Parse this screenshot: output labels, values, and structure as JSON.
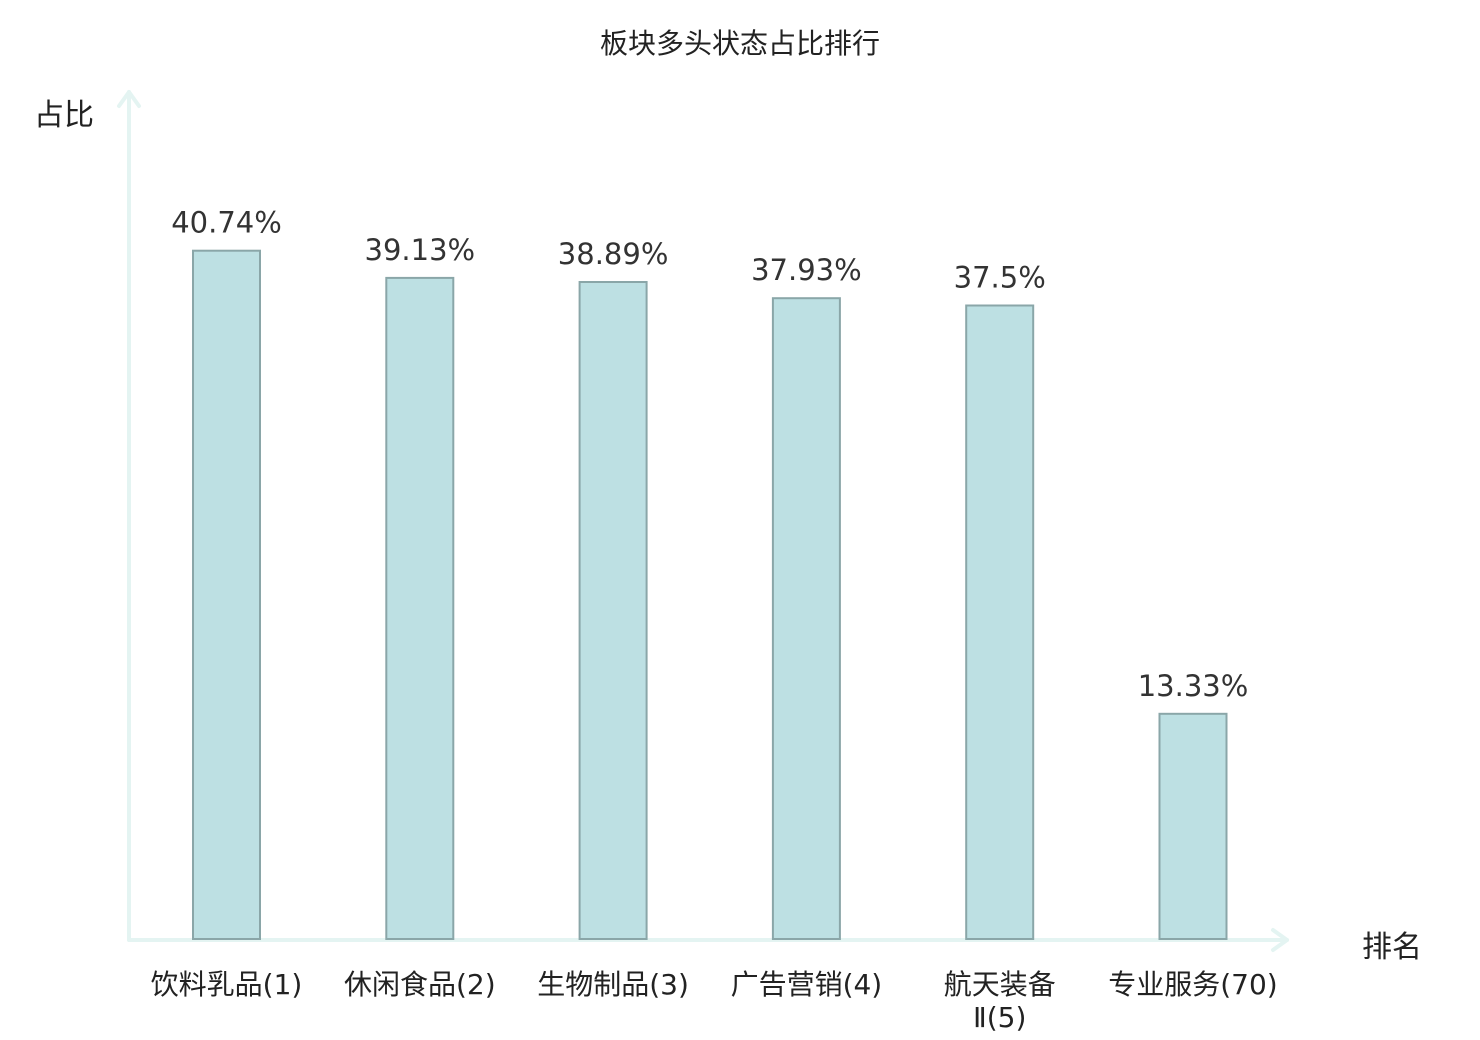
{
  "chart_data": {
    "type": "bar",
    "title": "板块多头状态占比排行",
    "ylabel": "占比",
    "xlabel": "排名",
    "categories": [
      "饮料乳品(1)",
      "休闲食品(2)",
      "生物制品(3)",
      "广告营销(4)",
      "航天装备Ⅱ(5)",
      "专业服务(70)"
    ],
    "category_lines": [
      [
        "饮料乳品(1)"
      ],
      [
        "休闲食品(2)"
      ],
      [
        "生物制品(3)"
      ],
      [
        "广告营销(4)"
      ],
      [
        "航天装备",
        "Ⅱ(5)"
      ],
      [
        "专业服务(70)"
      ]
    ],
    "values": [
      40.74,
      39.13,
      38.89,
      37.93,
      37.5,
      13.33
    ],
    "value_labels": [
      "40.74%",
      "39.13%",
      "38.89%",
      "37.93%",
      "37.5%",
      "13.33%"
    ],
    "ylim": [
      0,
      42.5
    ],
    "highlight_index": 5,
    "colors": {
      "bar_fill": "#bde0e3",
      "bar_stroke": "#8aa6a8",
      "axis": "#e4f4f2",
      "highlight_text": "#e8190f",
      "text": "#222222"
    },
    "grid": false,
    "legend": "none"
  }
}
